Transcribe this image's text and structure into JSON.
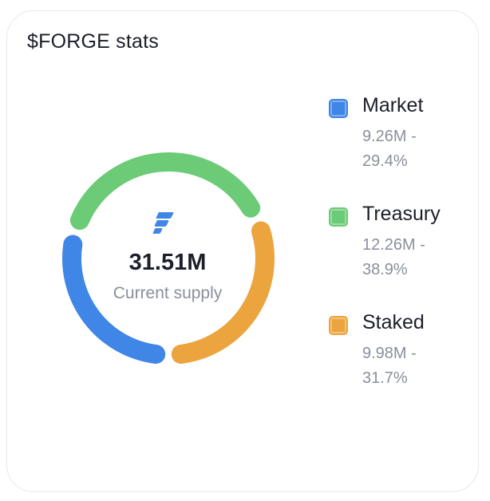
{
  "card": {
    "title": "$FORGE stats"
  },
  "center": {
    "value": "31.51M",
    "label": "Current supply",
    "logo_icon": "forge-logo-icon"
  },
  "colors": {
    "market": "#3f86e6",
    "treasury": "#6bcb76",
    "staked": "#eba43e"
  },
  "legend": [
    {
      "name": "Market",
      "value": "9.26M - 29.4%"
    },
    {
      "name": "Treasury",
      "value": "12.26M - 38.9%"
    },
    {
      "name": "Staked",
      "value": "9.98M - 31.7%"
    }
  ],
  "chart_data": {
    "type": "pie",
    "categories": [
      "Market",
      "Treasury",
      "Staked"
    ],
    "values": [
      9.26,
      12.26,
      9.98
    ],
    "percentages": [
      29.4,
      38.9,
      31.7
    ],
    "unit": "M",
    "total": 31.51,
    "donut": true,
    "legend_position": "right"
  }
}
